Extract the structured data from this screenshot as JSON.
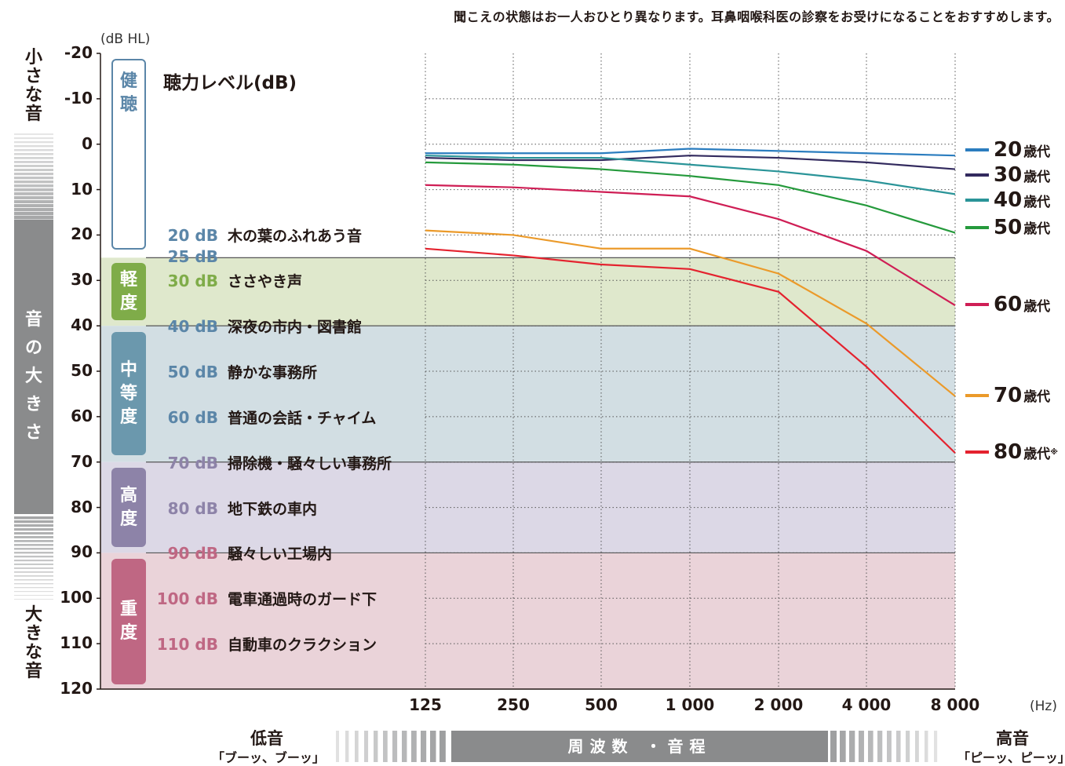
{
  "note": "聞こえの状態はお一人おひとり異なります。耳鼻咽喉科医の診察をお受けになることをおすすめします。",
  "y_unit": "(dB HL)",
  "x_unit": "(Hz)",
  "left_axis": {
    "top_label": "小さな音",
    "middle_label": "音の大きさ",
    "bottom_label": "大きな音"
  },
  "chart_title": "聴力レベル(dB)",
  "bottom_axis": {
    "low_label": "低音",
    "low_sound": "「ブーッ、ブーッ」",
    "center_label": "周波数 ・音程",
    "high_label": "高音",
    "high_sound": "「ピーッ、ピーッ」"
  },
  "levels": [
    {
      "name": "健聴",
      "color": "#ffffff",
      "border": "#5b86a8",
      "text_color": "#5b86a8",
      "band_color": "#ffffff",
      "from": -20,
      "to": 25
    },
    {
      "name": "軽度",
      "color": "#7fac49",
      "band_color": "#dfe8cc",
      "from": 25,
      "to": 40
    },
    {
      "name": "中等度",
      "color": "#6b98ad",
      "band_color": "#d2dee3",
      "from": 40,
      "to": 70
    },
    {
      "name": "高度",
      "color": "#8d83a8",
      "band_color": "#dcd8e6",
      "from": 70,
      "to": 90
    },
    {
      "name": "重度",
      "color": "#bf6783",
      "band_color": "#ead3d9",
      "from": 90,
      "to": 120
    }
  ],
  "references": [
    {
      "db": "20 dB",
      "desc": "木の葉のふれあう音",
      "color": "#5b86a8"
    },
    {
      "db": "25 dB",
      "desc": "",
      "color": "#5b86a8"
    },
    {
      "db": "30 dB",
      "desc": "ささやき声",
      "color": "#7fac49"
    },
    {
      "db": "40 dB",
      "desc": "深夜の市内・図書館",
      "color": "#5b86a8"
    },
    {
      "db": "50 dB",
      "desc": "静かな事務所",
      "color": "#5b86a8"
    },
    {
      "db": "60 dB",
      "desc": "普通の会話・チャイム",
      "color": "#5b86a8"
    },
    {
      "db": "70 dB",
      "desc": "掃除機・騒々しい事務所",
      "color": "#8d83a8"
    },
    {
      "db": "80 dB",
      "desc": "地下鉄の車内",
      "color": "#8d83a8"
    },
    {
      "db": "90 dB",
      "desc": "騒々しい工場内",
      "color": "#bf6783"
    },
    {
      "db": "100 dB",
      "desc": "電車通過時のガード下",
      "color": "#bf6783"
    },
    {
      "db": "110 dB",
      "desc": "自動車のクラクション",
      "color": "#bf6783"
    }
  ],
  "chart_data": {
    "type": "line",
    "title": "聴力レベル(dB)",
    "xlabel": "",
    "ylabel": "(dB HL)",
    "x_unit": "(Hz)",
    "categories": [
      "125",
      "250",
      "500",
      "1 000",
      "2 000",
      "4 000",
      "8 000"
    ],
    "ylim": [
      -20,
      120
    ],
    "y_ticks": [
      -20,
      -10,
      0,
      10,
      20,
      30,
      40,
      50,
      60,
      70,
      80,
      90,
      100,
      110,
      120
    ],
    "y_inverted": true,
    "grid": true,
    "legend_position": "right",
    "series": [
      {
        "name": "20",
        "suffix": "歳代",
        "color": "#2b7dbf",
        "values": [
          2,
          2,
          2,
          1,
          1.5,
          2,
          2.5
        ]
      },
      {
        "name": "30",
        "suffix": "歳代",
        "color": "#322a5e",
        "values": [
          3,
          3.5,
          3.5,
          2.5,
          3,
          4,
          5.5
        ]
      },
      {
        "name": "40",
        "suffix": "歳代",
        "color": "#2a9498",
        "values": [
          2.5,
          3,
          3,
          4.5,
          6,
          8,
          11
        ]
      },
      {
        "name": "50",
        "suffix": "歳代",
        "color": "#259a3c",
        "values": [
          4,
          4.5,
          5.5,
          7,
          9,
          13.5,
          19.5
        ]
      },
      {
        "name": "60",
        "suffix": "歳代",
        "color": "#cf1e55",
        "values": [
          9,
          9.5,
          10.5,
          11.5,
          16.5,
          23.5,
          35.5
        ]
      },
      {
        "name": "70",
        "suffix": "歳代",
        "color": "#eb9a2a",
        "values": [
          19,
          20,
          23,
          23,
          28.5,
          39.5,
          55.5
        ]
      },
      {
        "name": "80",
        "suffix": "歳代",
        "mark": "※",
        "color": "#e4222e",
        "values": [
          23,
          24.5,
          26.5,
          27.5,
          32.5,
          49,
          68
        ]
      }
    ]
  }
}
